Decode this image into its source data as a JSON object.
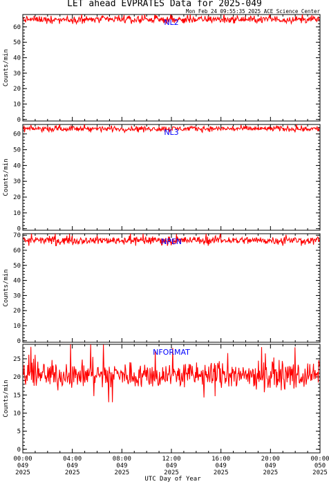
{
  "title": "LET ahead EVPRATES Data for 2025-049",
  "timestamp": "Mon Feb 24 09:55:35 2025 ACE Science Center",
  "xlabel": "UTC Day of Year",
  "xticks": [
    {
      "time": "00:00",
      "doy": "049",
      "year": "2025"
    },
    {
      "time": "04:00",
      "doy": "049",
      "year": "2025"
    },
    {
      "time": "08:00",
      "doy": "049",
      "year": "2025"
    },
    {
      "time": "12:00",
      "doy": "049",
      "year": "2025"
    },
    {
      "time": "16:00",
      "doy": "049",
      "year": "2025"
    },
    {
      "time": "20:00",
      "doy": "049",
      "year": "2025"
    },
    {
      "time": "00:00",
      "doy": "050",
      "year": "2025"
    }
  ],
  "colors": {
    "trace": "#ff0000",
    "label": "#0000ff",
    "axes": "#000000"
  },
  "chart_data": [
    {
      "type": "line",
      "series_label": "NL2",
      "ylabel": "Counts/min",
      "ylim": [
        -1,
        68
      ],
      "yticks": [
        0,
        10,
        20,
        30,
        40,
        50,
        60
      ],
      "xlim_hours": [
        0,
        24
      ],
      "mean": 64.8,
      "spread": 1.6,
      "min": 62,
      "max": 68
    },
    {
      "type": "line",
      "series_label": "NL3",
      "ylabel": "Counts/min",
      "ylim": [
        -1,
        66
      ],
      "yticks": [
        0,
        10,
        20,
        30,
        40,
        50,
        60
      ],
      "xlim_hours": [
        0,
        24
      ],
      "mean": 63.3,
      "spread": 1.2,
      "min": 61,
      "max": 66
    },
    {
      "type": "line",
      "series_label": "NPEN",
      "ylabel": "Counts/min",
      "ylim": [
        -1,
        71
      ],
      "yticks": [
        0,
        10,
        20,
        30,
        40,
        50,
        60,
        70
      ],
      "xlim_hours": [
        0,
        24
      ],
      "mean": 66.6,
      "spread": 1.8,
      "min": 63,
      "max": 71
    },
    {
      "type": "line",
      "series_label": "NFORMAT",
      "ylabel": "Counts/min",
      "ylim": [
        -1,
        29
      ],
      "yticks": [
        0,
        5,
        10,
        15,
        20,
        25
      ],
      "xlim_hours": [
        0,
        24
      ],
      "mean": 20.5,
      "spread": 2.6,
      "min": 13,
      "max": 29
    }
  ]
}
